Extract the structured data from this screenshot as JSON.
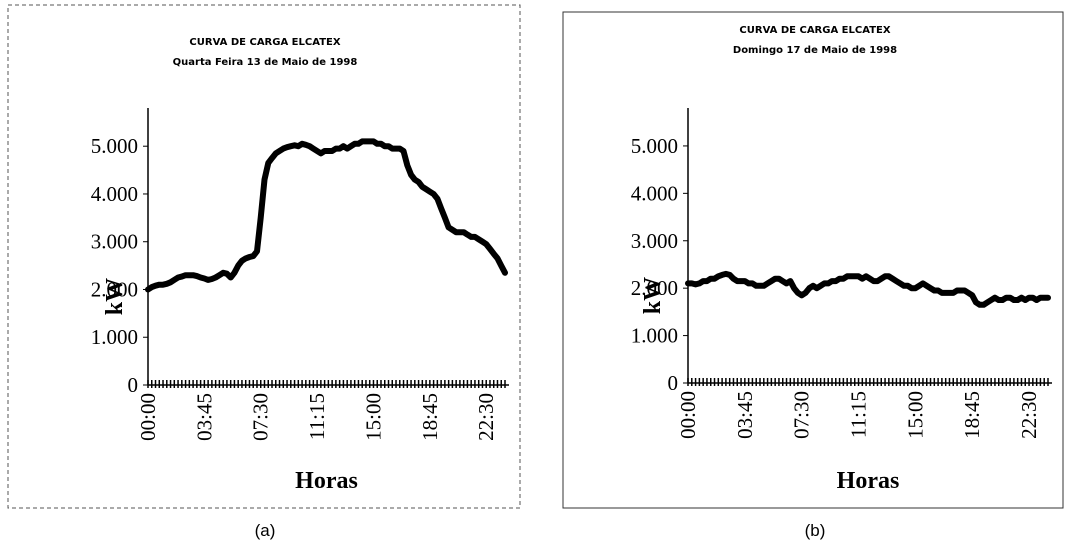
{
  "chart_data": [
    {
      "type": "line",
      "title": "CURVA DE CARGA ELCATEX",
      "subtitle": "Quarta Feira 13 de Maio de 1998",
      "y_label": "kW",
      "x_label": "Horas",
      "caption": "(a)",
      "categories": [
        "00:00",
        null,
        null,
        null,
        null,
        null,
        null,
        null,
        null,
        null,
        null,
        null,
        null,
        null,
        null,
        "03:45",
        null,
        null,
        null,
        null,
        null,
        null,
        null,
        null,
        null,
        null,
        null,
        null,
        null,
        null,
        "07:30",
        null,
        null,
        null,
        null,
        null,
        null,
        null,
        null,
        null,
        null,
        null,
        null,
        null,
        null,
        "11:15",
        null,
        null,
        null,
        null,
        null,
        null,
        null,
        null,
        null,
        null,
        null,
        null,
        null,
        null,
        "15:00",
        null,
        null,
        null,
        null,
        null,
        null,
        null,
        null,
        null,
        null,
        null,
        null,
        null,
        null,
        "18:45",
        null,
        null,
        null,
        null,
        null,
        null,
        null,
        null,
        null,
        null,
        null,
        null,
        null,
        null,
        "22:30",
        null,
        null,
        null,
        null,
        null
      ],
      "series": [
        {
          "name": "kW",
          "color": "#000000",
          "values": [
            2000,
            2050,
            2080,
            2100,
            2100,
            2120,
            2150,
            2200,
            2250,
            2270,
            2300,
            2300,
            2300,
            2280,
            2250,
            2230,
            2200,
            2220,
            2250,
            2300,
            2350,
            2330,
            2250,
            2350,
            2500,
            2600,
            2650,
            2680,
            2700,
            2800,
            3500,
            4300,
            4650,
            4750,
            4850,
            4900,
            4950,
            4980,
            5000,
            5020,
            5000,
            5050,
            5030,
            5000,
            4950,
            4900,
            4850,
            4900,
            4900,
            4900,
            4950,
            4950,
            5000,
            4950,
            5000,
            5050,
            5050,
            5100,
            5100,
            5100,
            5100,
            5050,
            5050,
            5000,
            5000,
            4950,
            4950,
            4950,
            4900,
            4600,
            4400,
            4300,
            4250,
            4150,
            4100,
            4050,
            4000,
            3900,
            3700,
            3500,
            3300,
            3250,
            3200,
            3200,
            3200,
            3150,
            3100,
            3100,
            3050,
            3000,
            2950,
            2850,
            2750,
            2650,
            2500,
            2350
          ]
        }
      ],
      "ylim": [
        0,
        5800
      ],
      "yticks": [
        0,
        {
          "value": 1000,
          "label": "1.000"
        },
        {
          "value": 2000,
          "label": "2.000"
        },
        {
          "value": 3000,
          "label": "3.000"
        },
        {
          "value": 4000,
          "label": "4.000"
        },
        {
          "value": 5000,
          "label": "5.000"
        }
      ]
    },
    {
      "type": "line",
      "title": "CURVA DE CARGA ELCATEX",
      "subtitle": "Domingo 17 de Maio de 1998",
      "y_label": "kW",
      "x_label": "Horas",
      "caption": "(b)",
      "categories": [
        "00:00",
        null,
        null,
        null,
        null,
        null,
        null,
        null,
        null,
        null,
        null,
        null,
        null,
        null,
        null,
        "03:45",
        null,
        null,
        null,
        null,
        null,
        null,
        null,
        null,
        null,
        null,
        null,
        null,
        null,
        null,
        "07:30",
        null,
        null,
        null,
        null,
        null,
        null,
        null,
        null,
        null,
        null,
        null,
        null,
        null,
        null,
        "11:15",
        null,
        null,
        null,
        null,
        null,
        null,
        null,
        null,
        null,
        null,
        null,
        null,
        null,
        null,
        "15:00",
        null,
        null,
        null,
        null,
        null,
        null,
        null,
        null,
        null,
        null,
        null,
        null,
        null,
        null,
        "18:45",
        null,
        null,
        null,
        null,
        null,
        null,
        null,
        null,
        null,
        null,
        null,
        null,
        null,
        null,
        "22:30",
        null,
        null,
        null,
        null,
        null
      ],
      "series": [
        {
          "name": "kW",
          "color": "#000000",
          "values": [
            2100,
            2100,
            2080,
            2100,
            2150,
            2150,
            2200,
            2200,
            2250,
            2280,
            2300,
            2280,
            2200,
            2150,
            2150,
            2150,
            2100,
            2100,
            2050,
            2050,
            2050,
            2100,
            2150,
            2200,
            2200,
            2150,
            2100,
            2150,
            2000,
            1900,
            1850,
            1900,
            2000,
            2050,
            2000,
            2050,
            2100,
            2100,
            2150,
            2150,
            2200,
            2200,
            2250,
            2250,
            2250,
            2250,
            2200,
            2250,
            2200,
            2150,
            2150,
            2200,
            2250,
            2250,
            2200,
            2150,
            2100,
            2050,
            2050,
            2000,
            2000,
            2050,
            2100,
            2050,
            2000,
            1950,
            1950,
            1900,
            1900,
            1900,
            1900,
            1950,
            1950,
            1950,
            1900,
            1850,
            1700,
            1650,
            1650,
            1700,
            1750,
            1800,
            1750,
            1750,
            1800,
            1800,
            1750,
            1750,
            1800,
            1750,
            1800,
            1800,
            1750,
            1800,
            1800,
            1800
          ]
        }
      ],
      "ylim": [
        0,
        5800
      ],
      "yticks": [
        0,
        {
          "value": 1000,
          "label": "1.000"
        },
        {
          "value": 2000,
          "label": "2.000"
        },
        {
          "value": 3000,
          "label": "3.000"
        },
        {
          "value": 4000,
          "label": "4.000"
        },
        {
          "value": 5000,
          "label": "5.000"
        }
      ]
    }
  ]
}
